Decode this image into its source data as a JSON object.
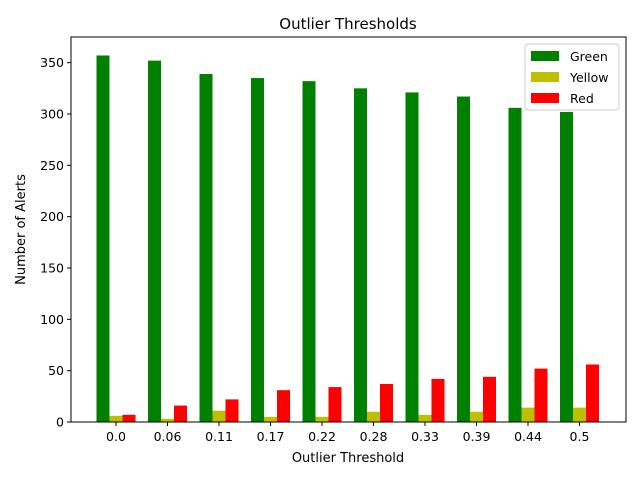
{
  "chart_data": {
    "type": "bar",
    "title": "Outlier Thresholds",
    "xlabel": "Outlier Threshold",
    "ylabel": "Number of Alerts",
    "categories": [
      "0.0",
      "0.06",
      "0.11",
      "0.17",
      "0.22",
      "0.28",
      "0.33",
      "0.39",
      "0.44",
      "0.5"
    ],
    "series": [
      {
        "name": "Green",
        "color": "#008000",
        "values": [
          357,
          352,
          339,
          335,
          332,
          325,
          321,
          317,
          306,
          302
        ]
      },
      {
        "name": "Yellow",
        "color": "#bfbf00",
        "values": [
          6,
          3,
          11,
          5,
          5,
          10,
          7,
          10,
          14,
          14
        ]
      },
      {
        "name": "Red",
        "color": "#ff0000",
        "values": [
          7,
          16,
          22,
          31,
          34,
          37,
          42,
          44,
          52,
          56
        ]
      }
    ],
    "ylim": [
      0,
      375
    ],
    "yticks": [
      0,
      50,
      100,
      150,
      200,
      250,
      300,
      350
    ],
    "grid": false,
    "legend_position": "top-right"
  }
}
